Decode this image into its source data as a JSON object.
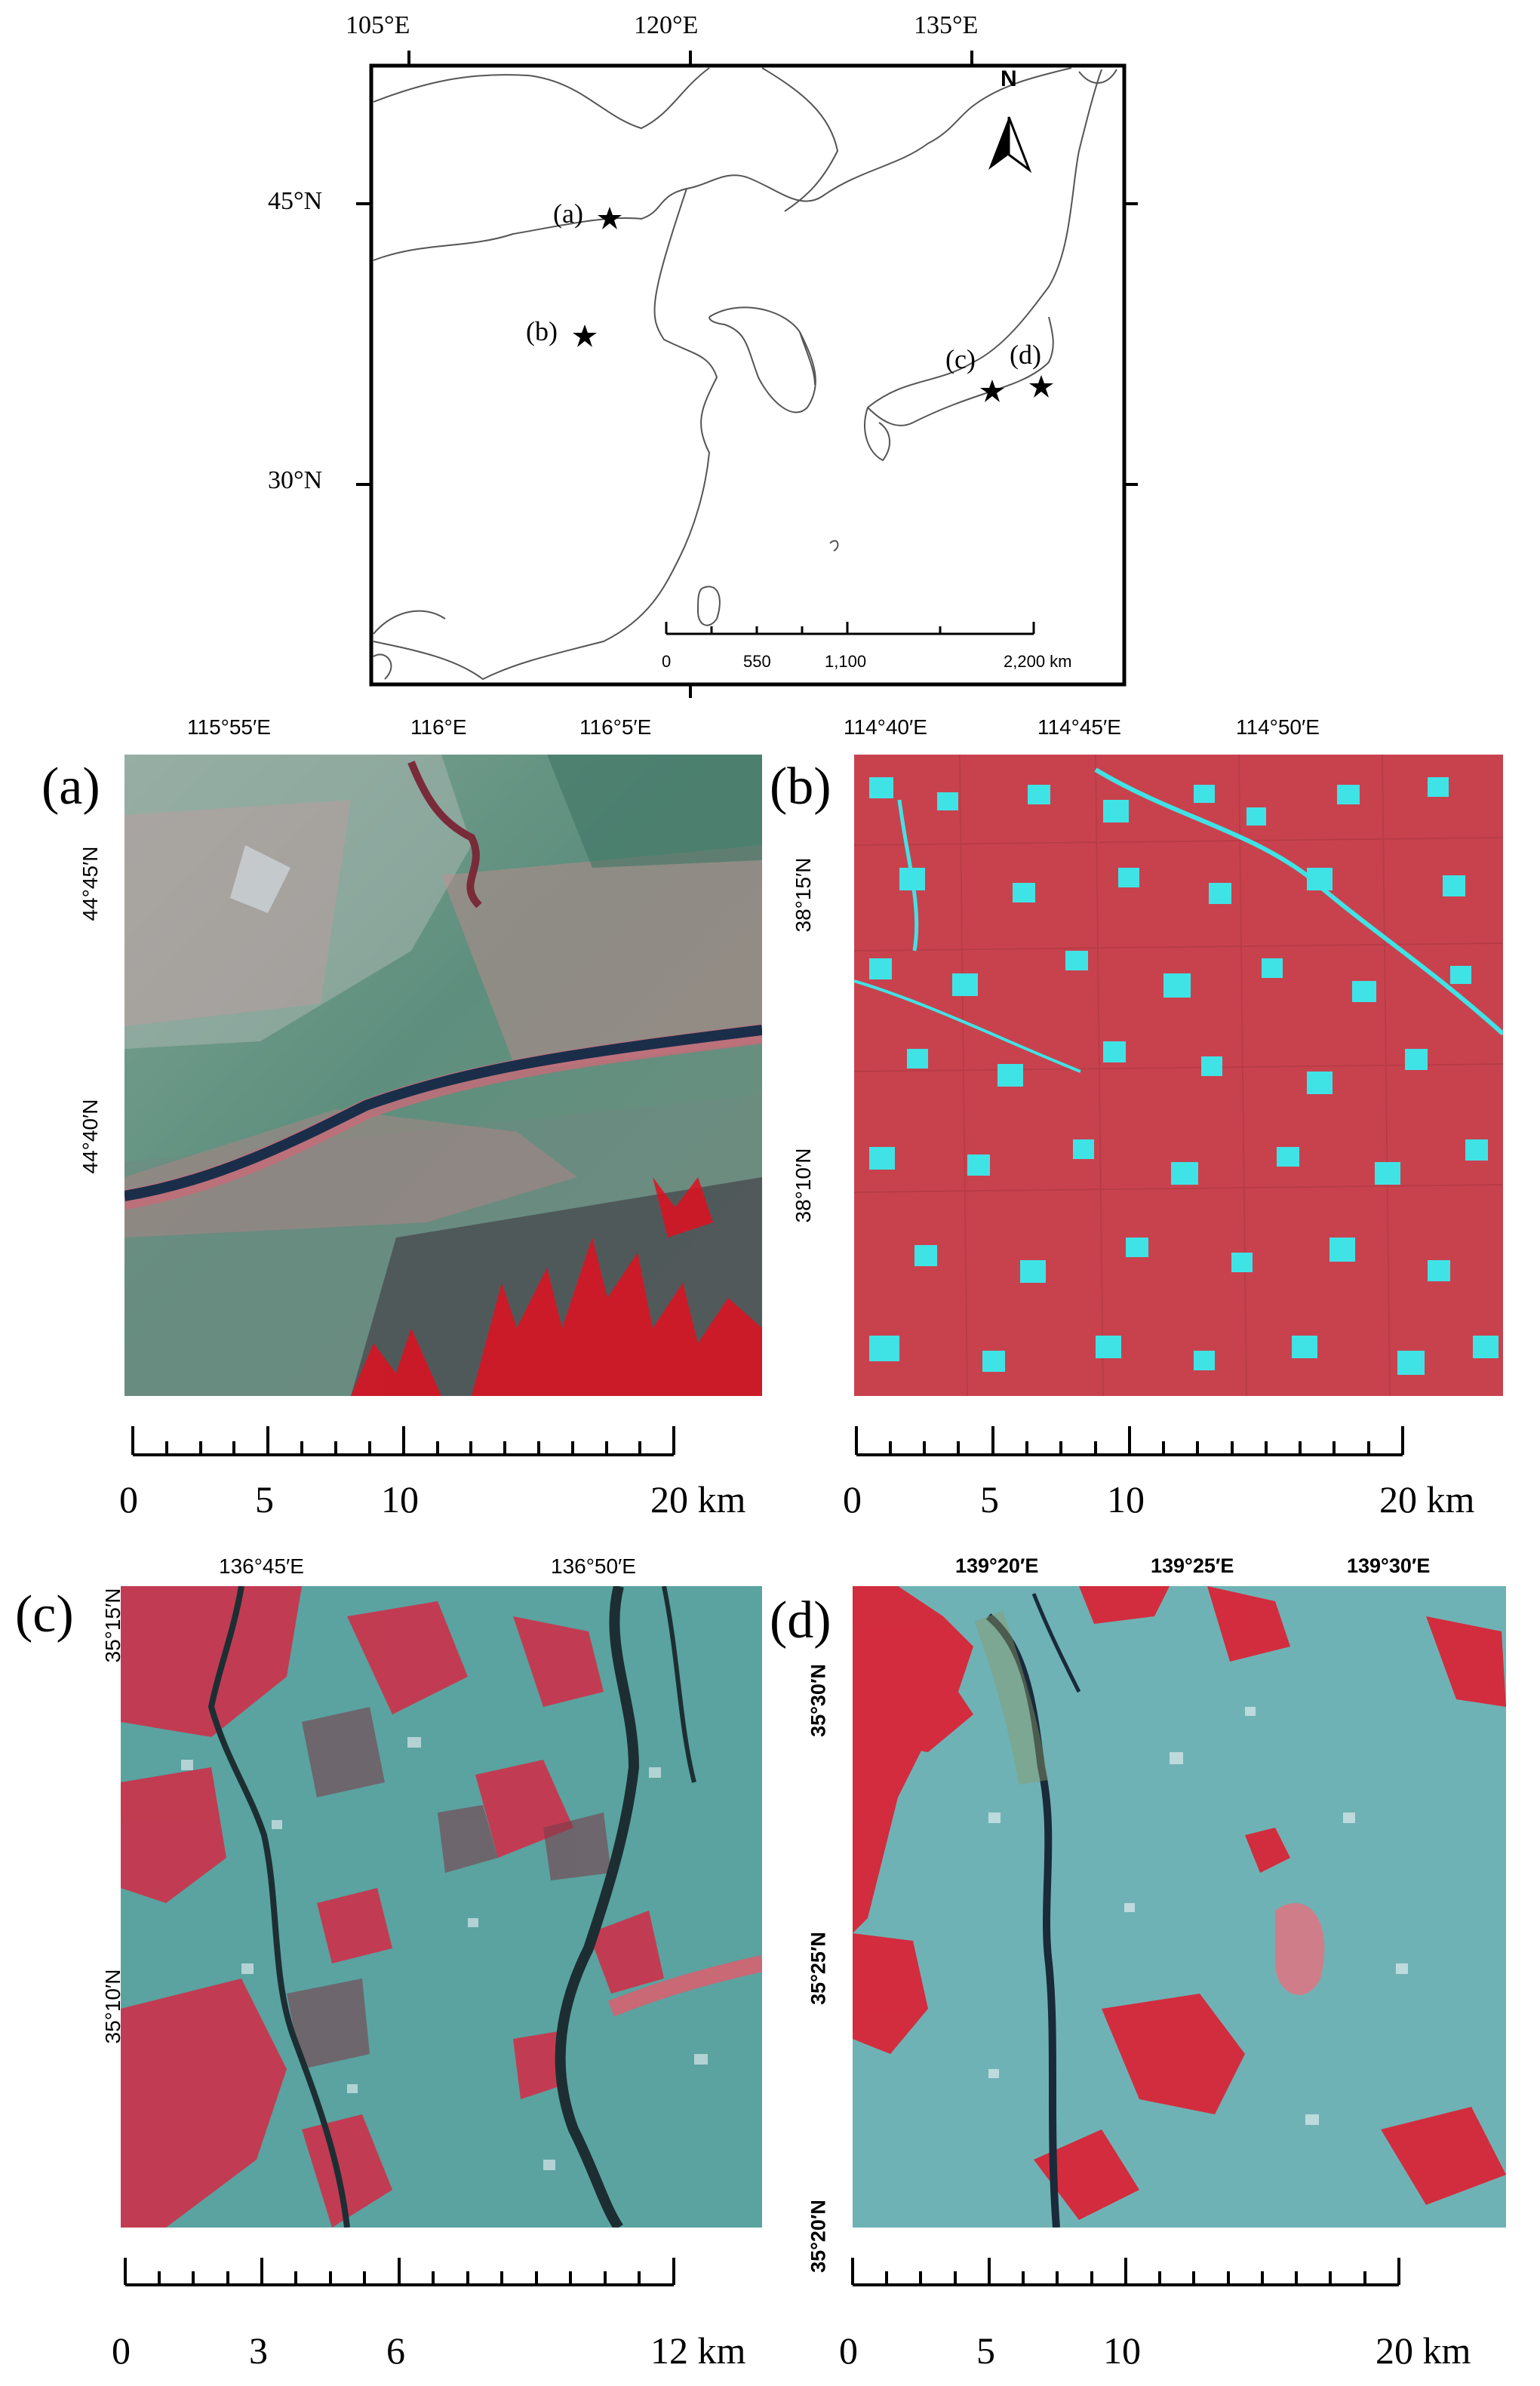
{
  "overview": {
    "lon_labels": [
      "105°E",
      "120°E",
      "135°E"
    ],
    "lat_labels": [
      "45°N",
      "30°N"
    ],
    "north": "N",
    "sites": [
      "(a)",
      "(b)",
      "(c)",
      "(d)"
    ],
    "scale_labels": [
      "0",
      "550",
      "1,100",
      "2,200 km"
    ]
  },
  "panels": [
    {
      "id": "a",
      "label": "(a)",
      "top_labels": [
        "115°55′E",
        "116°E",
        "116°5′E"
      ],
      "left_labels": [
        "44°45′N",
        "44°40′N"
      ],
      "scale_labels": [
        "0",
        "5",
        "10",
        "20 km"
      ],
      "dominant_colors": [
        "#4f8a78",
        "#c98a8f",
        "#e01020",
        "#1a2e4a"
      ]
    },
    {
      "id": "b",
      "label": "(b)",
      "top_labels": [
        "114°40′E",
        "114°45′E",
        "114°50′E"
      ],
      "left_labels": [
        "38°15′N",
        "38°10′N"
      ],
      "scale_labels": [
        "0",
        "5",
        "10",
        "20 km"
      ],
      "dominant_colors": [
        "#c8424e",
        "#3fe3e6"
      ]
    },
    {
      "id": "c",
      "label": "(c)",
      "top_labels": [
        "136°45′E",
        "136°50′E"
      ],
      "left_labels": [
        "35°15′N",
        "35°10′N"
      ],
      "scale_labels": [
        "0",
        "3",
        "6",
        "12 km"
      ],
      "dominant_colors": [
        "#5aa3a0",
        "#d42a44",
        "#1d2e33"
      ]
    },
    {
      "id": "d",
      "label": "(d)",
      "top_labels": [
        "139°20′E",
        "139°25′E",
        "139°30′E"
      ],
      "left_labels": [
        "35°30′N",
        "35°25′N",
        "35°20′N"
      ],
      "scale_labels": [
        "0",
        "5",
        "10",
        "20 km"
      ],
      "dominant_colors": [
        "#6fb2b5",
        "#e01a2e",
        "#1a2a3a"
      ]
    }
  ]
}
